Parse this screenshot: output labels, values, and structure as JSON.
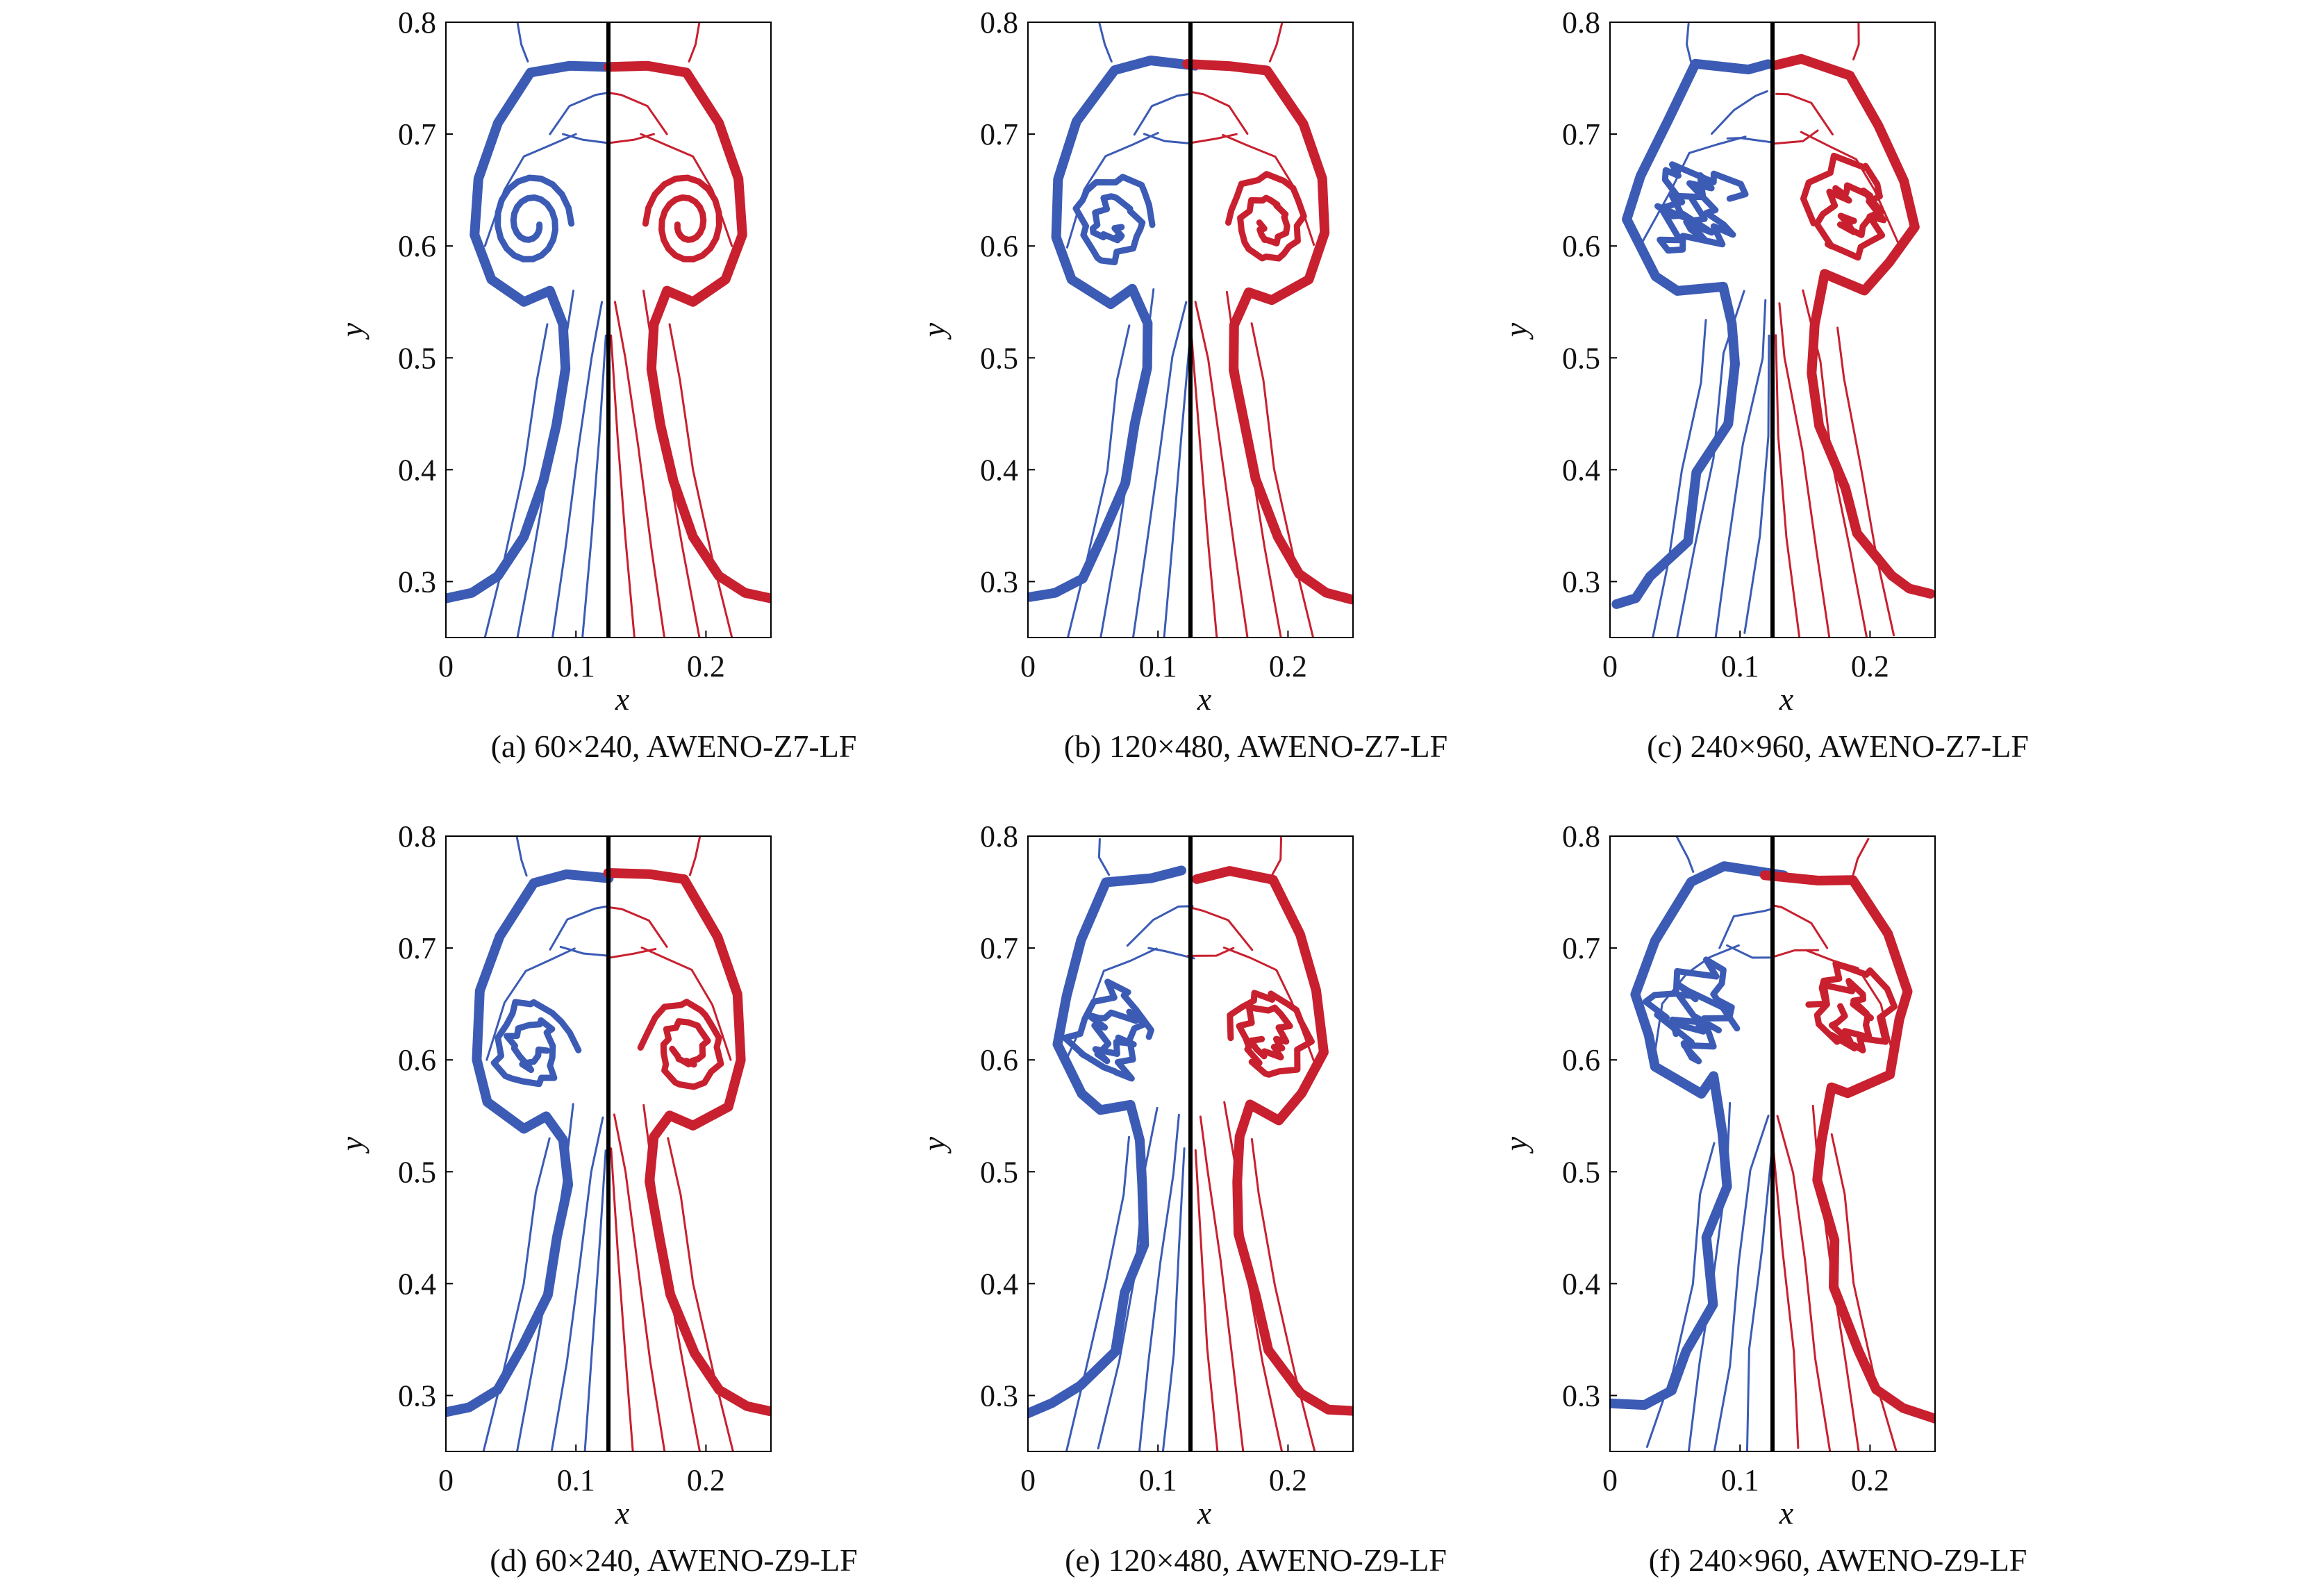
{
  "chart_data": [
    {
      "type": "contour",
      "caption": "(a) 60×240, AWENO-Z7-LF",
      "xlabel": "x",
      "ylabel": "y",
      "xlim": [
        0,
        0.25
      ],
      "ylim": [
        0.25,
        0.8
      ],
      "xticks": [
        "0",
        "0.1",
        "0.2"
      ],
      "yticks": [
        "0.3",
        "0.4",
        "0.5",
        "0.6",
        "0.7",
        "0.8"
      ],
      "xtick_values": [
        0,
        0.1,
        0.2
      ],
      "ytick_values": [
        0.3,
        0.4,
        0.5,
        0.6,
        0.7,
        0.8
      ],
      "divider_x": 0.125,
      "left_color": "#3b5bb5",
      "right_color": "#c8202f",
      "turbulence": 0,
      "cap_top": 0.76,
      "cap_bottom": 0.55
    },
    {
      "type": "contour",
      "caption": "(b) 120×480, AWENO-Z7-LF",
      "xlabel": "x",
      "ylabel": "y",
      "xlim": [
        0,
        0.25
      ],
      "ylim": [
        0.25,
        0.8
      ],
      "xticks": [
        "0",
        "0.1",
        "0.2"
      ],
      "yticks": [
        "0.3",
        "0.4",
        "0.5",
        "0.6",
        "0.7",
        "0.8"
      ],
      "xtick_values": [
        0,
        0.1,
        0.2
      ],
      "ytick_values": [
        0.3,
        0.4,
        0.5,
        0.6,
        0.7,
        0.8
      ],
      "divider_x": 0.125,
      "left_color": "#3b5bb5",
      "right_color": "#c8202f",
      "turbulence": 1,
      "cap_top": 0.762,
      "cap_bottom": 0.55
    },
    {
      "type": "contour",
      "caption": "(c) 240×960, AWENO-Z7-LF",
      "xlabel": "x",
      "ylabel": "y",
      "xlim": [
        0,
        0.25
      ],
      "ylim": [
        0.25,
        0.8
      ],
      "xticks": [
        "0",
        "0.1",
        "0.2"
      ],
      "yticks": [
        "0.3",
        "0.4",
        "0.5",
        "0.6",
        "0.7",
        "0.8"
      ],
      "xtick_values": [
        0,
        0.1,
        0.2
      ],
      "ytick_values": [
        0.3,
        0.4,
        0.5,
        0.6,
        0.7,
        0.8
      ],
      "divider_x": 0.125,
      "left_color": "#3b5bb5",
      "right_color": "#c8202f",
      "turbulence": 3,
      "cap_top": 0.762,
      "cap_bottom": 0.56
    },
    {
      "type": "contour",
      "caption": "(d) 60×240, AWENO-Z9-LF",
      "xlabel": "x",
      "ylabel": "y",
      "xlim": [
        0,
        0.25
      ],
      "ylim": [
        0.25,
        0.8
      ],
      "xticks": [
        "0",
        "0.1",
        "0.2"
      ],
      "yticks": [
        "0.3",
        "0.4",
        "0.5",
        "0.6",
        "0.7",
        "0.8"
      ],
      "xtick_values": [
        0,
        0.1,
        0.2
      ],
      "ytick_values": [
        0.3,
        0.4,
        0.5,
        0.6,
        0.7,
        0.8
      ],
      "divider_x": 0.125,
      "left_color": "#3b5bb5",
      "right_color": "#c8202f",
      "turbulence": 1,
      "cap_top": 0.765,
      "cap_bottom": 0.54
    },
    {
      "type": "contour",
      "caption": "(e) 120×480, AWENO-Z9-LF",
      "xlabel": "x",
      "ylabel": "y",
      "xlim": [
        0,
        0.25
      ],
      "ylim": [
        0.25,
        0.8
      ],
      "xticks": [
        "0",
        "0.1",
        "0.2"
      ],
      "yticks": [
        "0.3",
        "0.4",
        "0.5",
        "0.6",
        "0.7",
        "0.8"
      ],
      "xtick_values": [
        0,
        0.1,
        0.2
      ],
      "ytick_values": [
        0.3,
        0.4,
        0.5,
        0.6,
        0.7,
        0.8
      ],
      "divider_x": 0.125,
      "left_color": "#3b5bb5",
      "right_color": "#c8202f",
      "turbulence": 2,
      "cap_top": 0.765,
      "cap_bottom": 0.55
    },
    {
      "type": "contour",
      "caption": "(f) 240×960, AWENO-Z9-LF",
      "xlabel": "x",
      "ylabel": "y",
      "xlim": [
        0,
        0.25
      ],
      "ylim": [
        0.25,
        0.8
      ],
      "xticks": [
        "0",
        "0.1",
        "0.2"
      ],
      "yticks": [
        "0.3",
        "0.4",
        "0.5",
        "0.6",
        "0.7",
        "0.8"
      ],
      "xtick_values": [
        0,
        0.1,
        0.2
      ],
      "ytick_values": [
        0.3,
        0.4,
        0.5,
        0.6,
        0.7,
        0.8
      ],
      "divider_x": 0.125,
      "left_color": "#3b5bb5",
      "right_color": "#c8202f",
      "turbulence": 3,
      "cap_top": 0.765,
      "cap_bottom": 0.57
    }
  ]
}
